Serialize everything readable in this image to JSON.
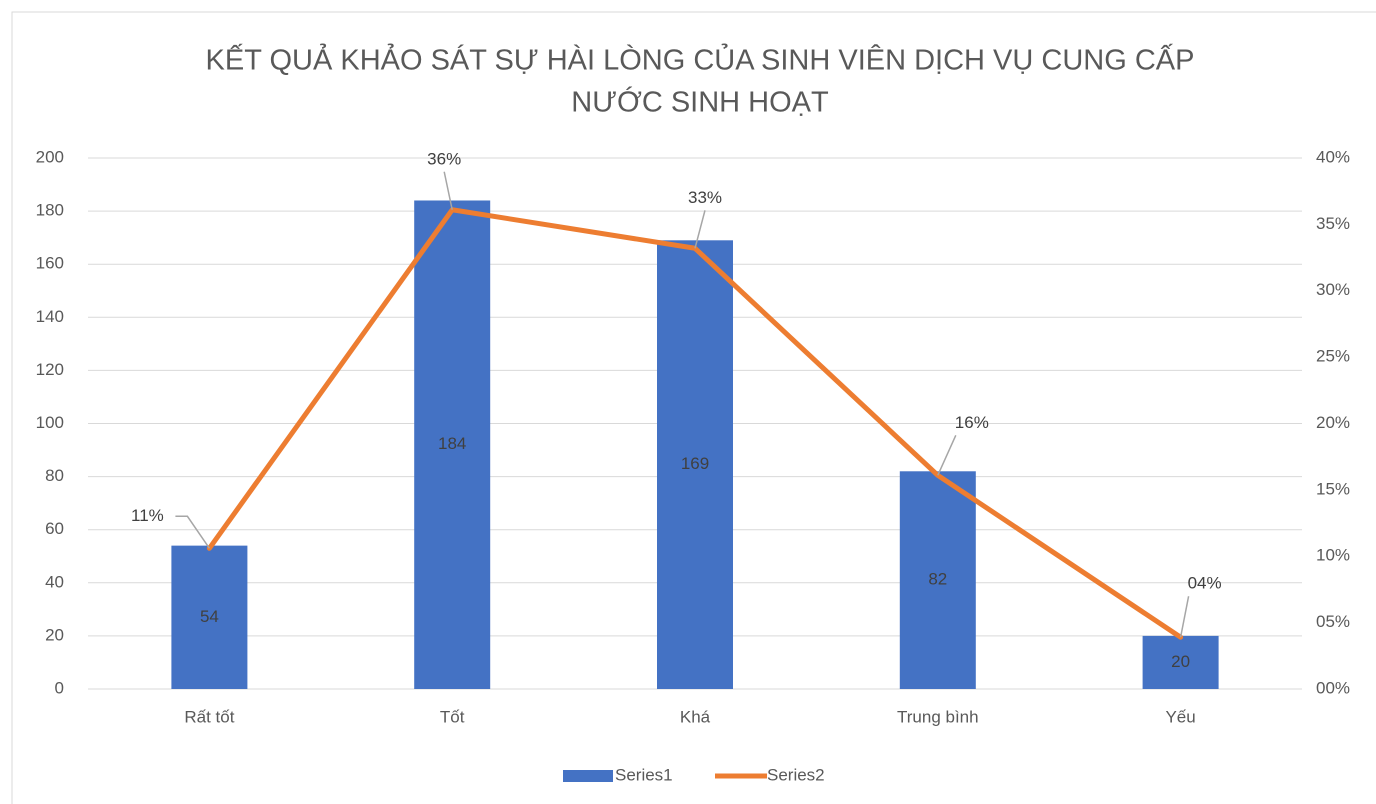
{
  "chart_data": {
    "type": "bar-line",
    "title": [
      "KẾT QUẢ KHẢO SÁT SỰ HÀI LÒNG CỦA SINH VIÊN DỊCH VỤ CUNG CẤP",
      "NƯỚC SINH HOẠT"
    ],
    "categories": [
      "Rất tốt",
      "Tốt",
      "Khá",
      "Trung bình",
      "Yếu"
    ],
    "series": [
      {
        "name": "Series1",
        "color": "#4472c4",
        "chart": "bar",
        "values": [
          54,
          184,
          169,
          82,
          20
        ]
      },
      {
        "name": "Series2",
        "color": "#ed7d31",
        "chart": "line",
        "axis": "y2",
        "values": [
          10.6,
          36.1,
          33.2,
          16.1,
          3.9
        ],
        "value_labels": [
          "11%",
          "36%",
          "33%",
          "16%",
          "04%"
        ]
      }
    ],
    "ylim": [
      0,
      200
    ],
    "yticks": [
      0,
      20,
      40,
      60,
      80,
      100,
      120,
      140,
      160,
      180,
      200
    ],
    "y2lim": [
      0,
      40
    ],
    "y2ticks": [
      {
        "value": 0,
        "label": "00%"
      },
      {
        "value": 5,
        "label": "05%"
      },
      {
        "value": 10,
        "label": "10%"
      },
      {
        "value": 15,
        "label": "15%"
      },
      {
        "value": 20,
        "label": "20%"
      },
      {
        "value": 25,
        "label": "25%"
      },
      {
        "value": 30,
        "label": "30%"
      },
      {
        "value": 35,
        "label": "35%"
      },
      {
        "value": 40,
        "label": "40%"
      }
    ],
    "grid": true,
    "legend": "bottom"
  }
}
